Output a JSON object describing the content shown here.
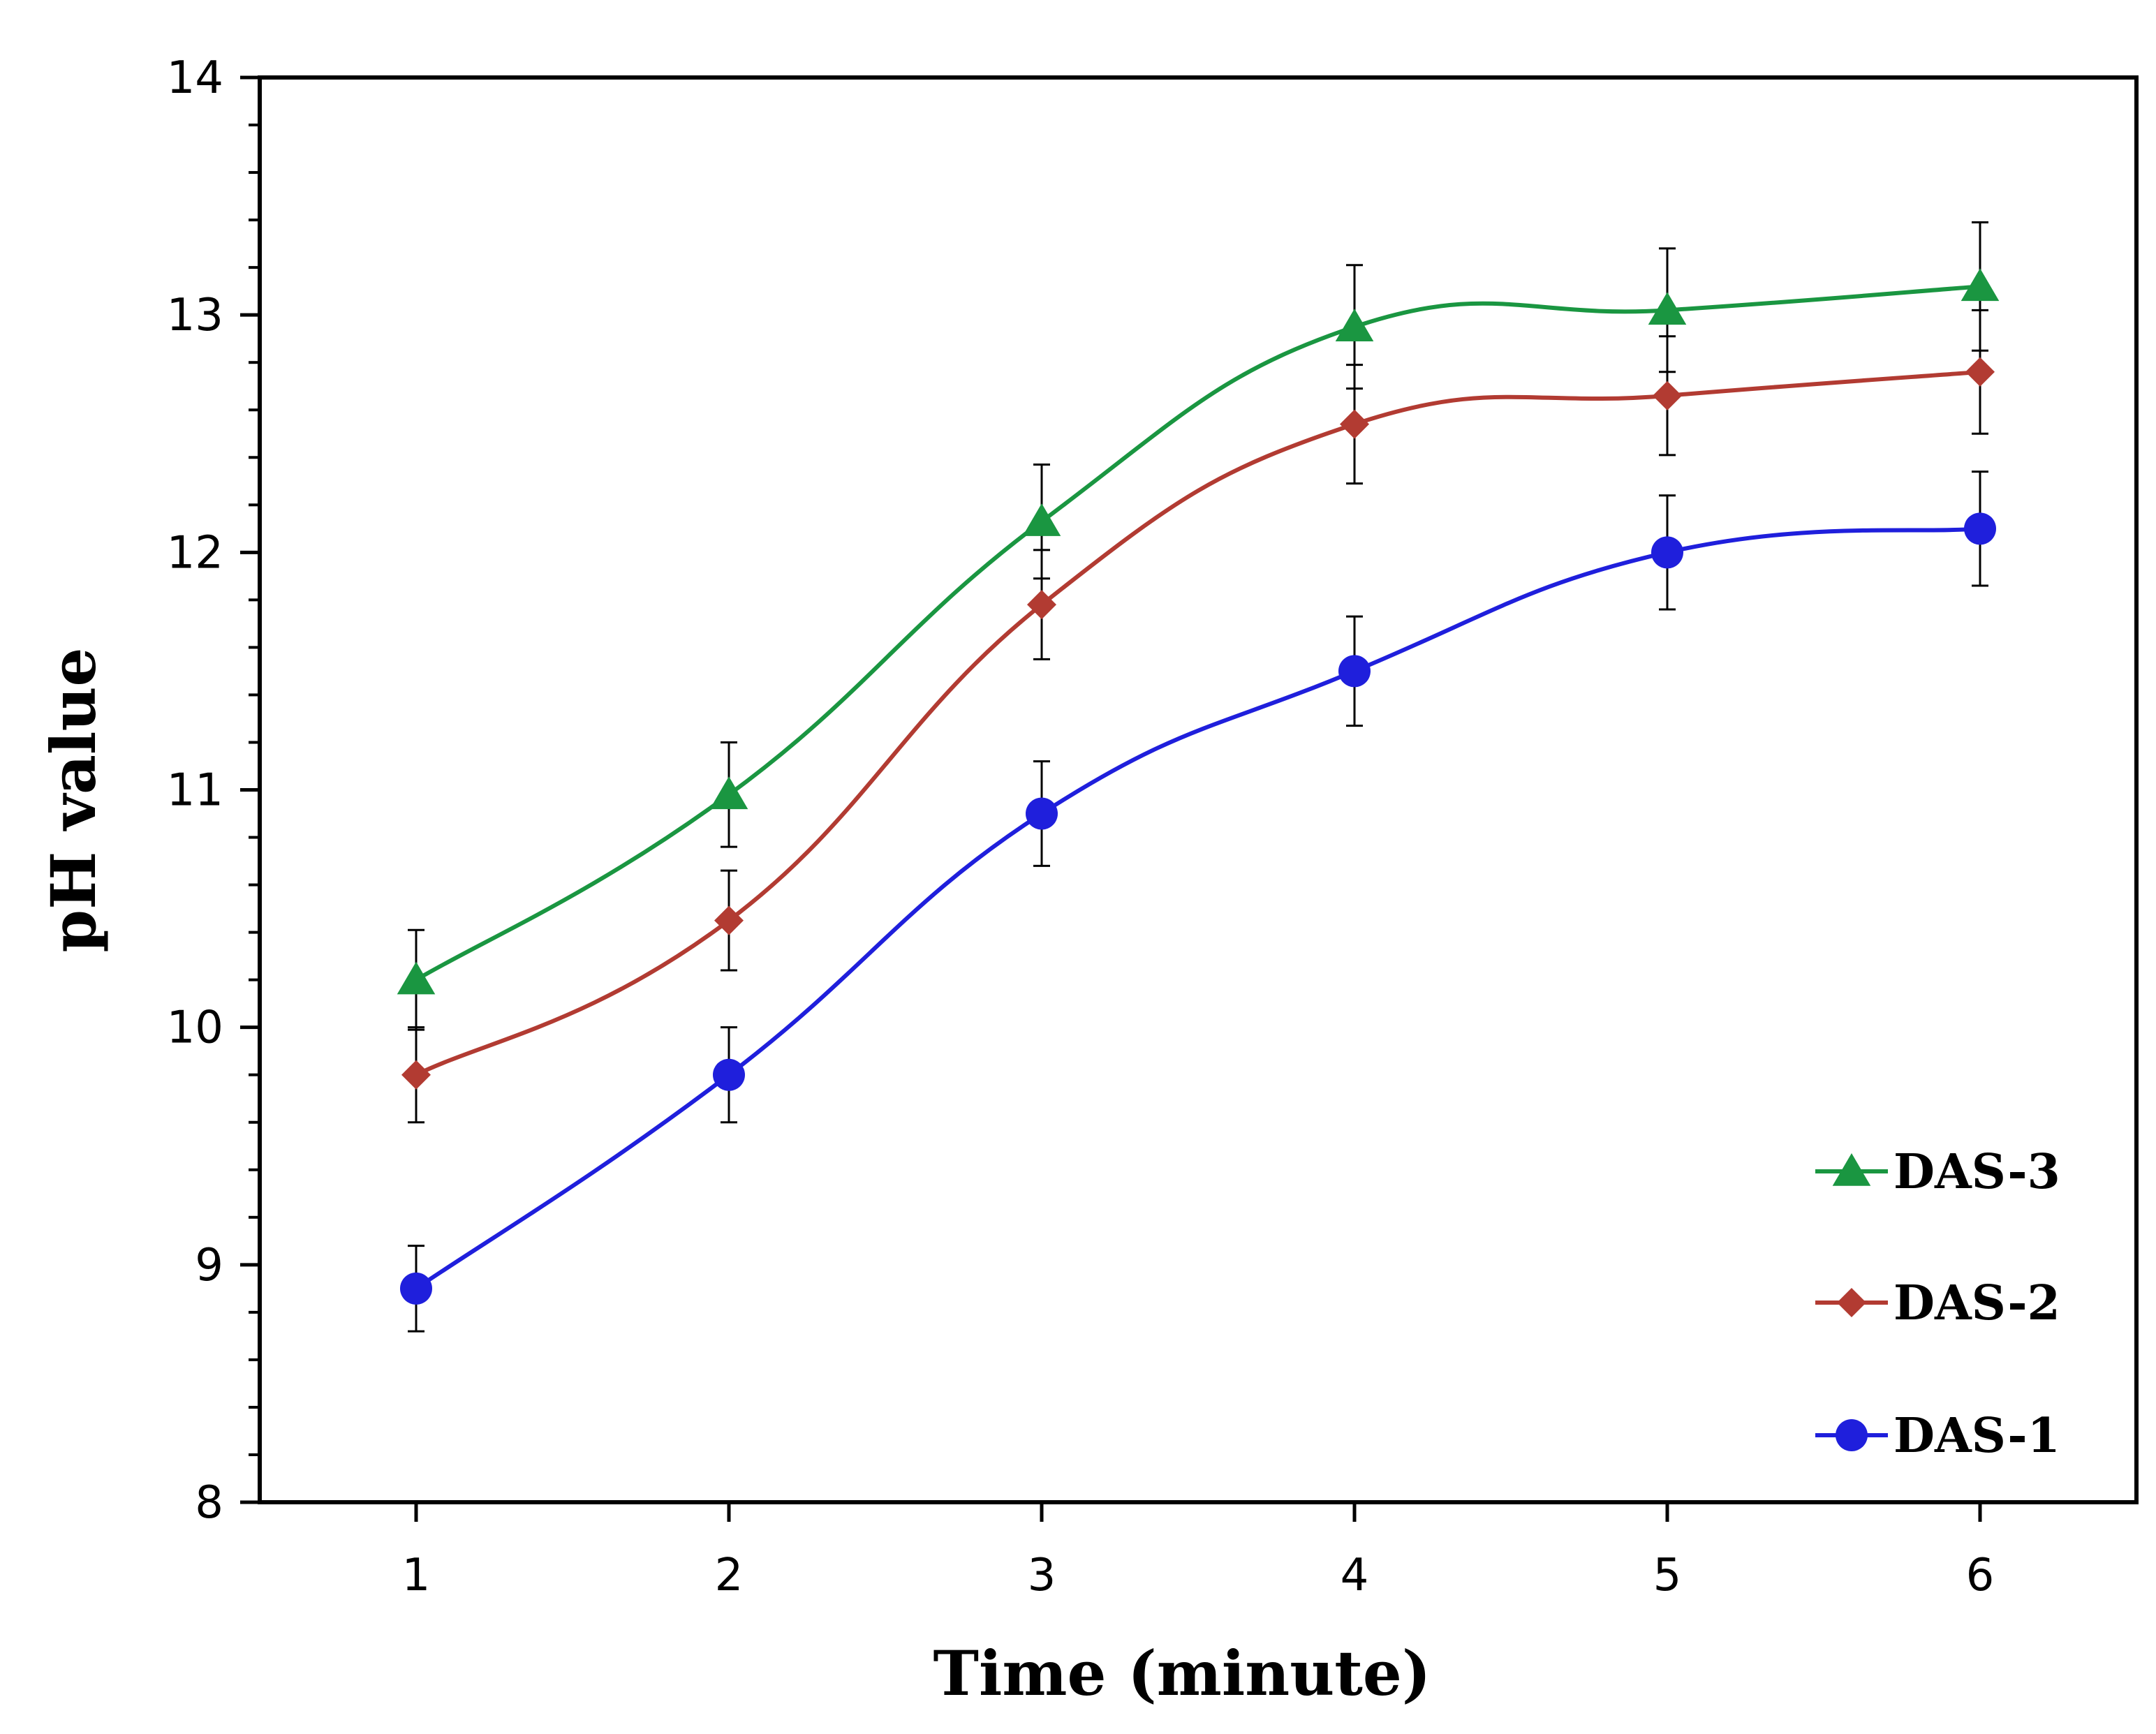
{
  "chart_data": {
    "type": "line",
    "title": "",
    "xlabel": "Time (minute)",
    "ylabel": "pH value",
    "x": [
      1,
      2,
      3,
      4,
      5,
      6
    ],
    "x_ticks": [
      "1",
      "2",
      "3",
      "4",
      "5",
      "6"
    ],
    "y_ticks": [
      "8",
      "9",
      "10",
      "11",
      "12",
      "13",
      "14"
    ],
    "xlim": [
      0.5,
      6.5
    ],
    "ylim": [
      8,
      14
    ],
    "grid": false,
    "legend_position": "bottom-right",
    "series": [
      {
        "name": "DAS-3",
        "color": "#1a9641",
        "marker": "triangle",
        "values": [
          10.2,
          10.98,
          12.13,
          12.95,
          13.02,
          13.12
        ],
        "errors": [
          0.21,
          0.22,
          0.24,
          0.26,
          0.26,
          0.27
        ]
      },
      {
        "name": "DAS-2",
        "color": "#b23b32",
        "marker": "diamond",
        "values": [
          9.8,
          10.45,
          11.78,
          12.54,
          12.66,
          12.76
        ],
        "errors": [
          0.2,
          0.21,
          0.23,
          0.25,
          0.25,
          0.26
        ]
      },
      {
        "name": "DAS-1",
        "color": "#1f1fdc",
        "marker": "circle",
        "values": [
          8.9,
          9.8,
          10.9,
          11.5,
          12.0,
          12.1
        ],
        "errors": [
          0.18,
          0.2,
          0.22,
          0.23,
          0.24,
          0.24
        ]
      }
    ],
    "legend_order": [
      "DAS-3",
      "DAS-2",
      "DAS-1"
    ]
  }
}
